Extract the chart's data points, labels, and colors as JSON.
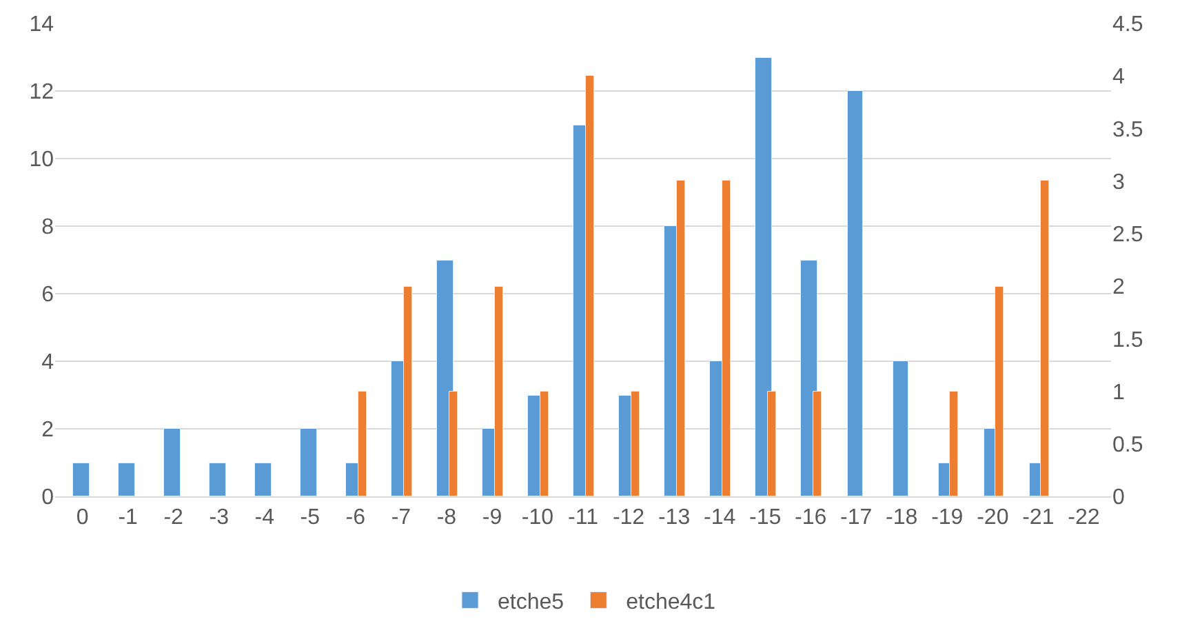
{
  "chart_data": {
    "type": "bar",
    "categories": [
      "0",
      "-1",
      "-2",
      "-3",
      "-4",
      "-5",
      "-6",
      "-7",
      "-8",
      "-9",
      "-10",
      "-11",
      "-12",
      "-13",
      "-14",
      "-15",
      "-16",
      "-17",
      "-18",
      "-19",
      "-20",
      "-21",
      "-22"
    ],
    "series": [
      {
        "name": "etche5",
        "color": "#5b9bd5",
        "values": [
          1,
          1,
          2,
          1,
          1,
          2,
          1,
          4,
          7,
          2,
          3,
          11,
          3,
          8,
          4,
          13,
          7,
          12,
          4,
          1,
          2,
          1,
          null
        ]
      },
      {
        "name": "etche4c1",
        "color": "#ed7d31",
        "axis": "y2",
        "values": [
          null,
          null,
          null,
          null,
          null,
          null,
          1,
          2,
          1,
          2,
          1,
          4,
          1,
          3,
          3,
          1,
          1,
          null,
          null,
          1,
          2,
          3,
          null
        ]
      }
    ],
    "ylim": [
      0,
      14
    ],
    "yticks": [
      0,
      2,
      4,
      6,
      8,
      10,
      12,
      14
    ],
    "y2lim": [
      0,
      4.5
    ],
    "y2ticks": [
      0,
      0.5,
      1,
      1.5,
      2,
      2.5,
      3,
      3.5,
      4,
      4.5
    ],
    "grid": "y",
    "legend": "bottom"
  }
}
